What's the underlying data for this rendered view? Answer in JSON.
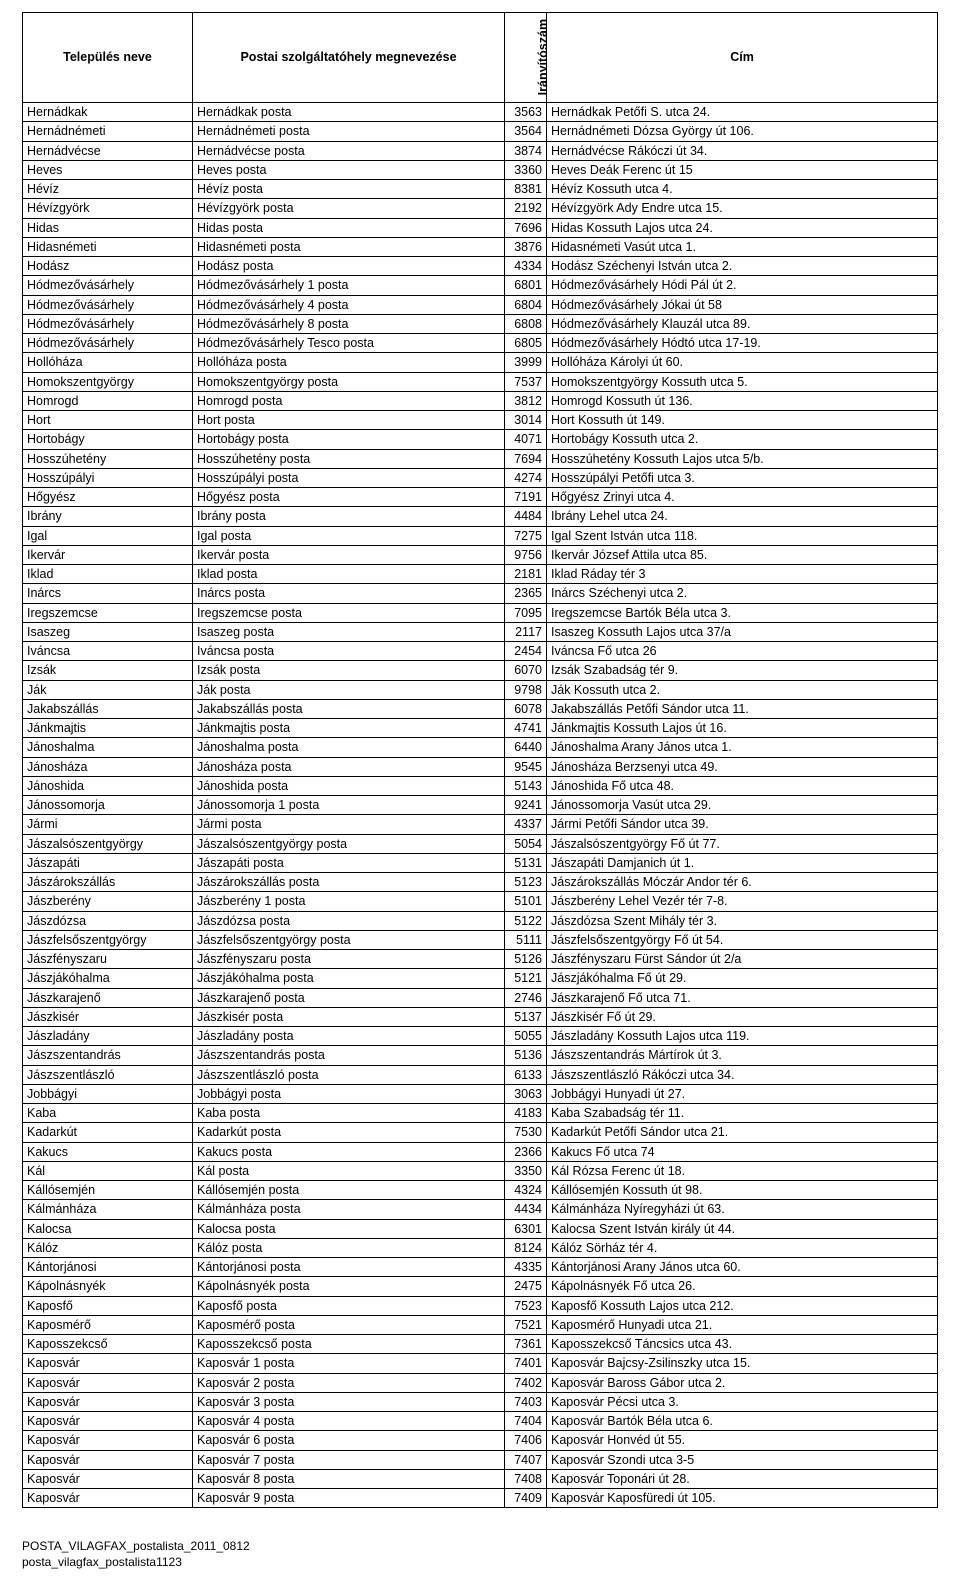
{
  "columns": [
    "Település neve",
    "Postai szolgáltatóhely megnevezése",
    "Irányítószám",
    "Cím"
  ],
  "rows": [
    [
      "Hernádkak",
      "Hernádkak posta",
      "3563",
      "Hernádkak Petőfi S. utca 24."
    ],
    [
      "Hernádnémeti",
      "Hernádnémeti posta",
      "3564",
      "Hernádnémeti Dózsa György út 106."
    ],
    [
      "Hernádvécse",
      "Hernádvécse posta",
      "3874",
      "Hernádvécse Rákóczi út 34."
    ],
    [
      "Heves",
      "Heves posta",
      "3360",
      "Heves Deák Ferenc út 15"
    ],
    [
      "Hévíz",
      "Hévíz posta",
      "8381",
      "Hévíz Kossuth utca 4."
    ],
    [
      "Hévízgyörk",
      "Hévízgyörk posta",
      "2192",
      "Hévízgyörk Ady Endre utca 15."
    ],
    [
      "Hidas",
      "Hidas posta",
      "7696",
      "Hidas Kossuth Lajos utca 24."
    ],
    [
      "Hidasnémeti",
      "Hidasnémeti posta",
      "3876",
      "Hidasnémeti Vasút utca 1."
    ],
    [
      "Hodász",
      "Hodász posta",
      "4334",
      "Hodász Széchenyi István utca 2."
    ],
    [
      "Hódmezővásárhely",
      "Hódmezővásárhely 1 posta",
      "6801",
      "Hódmezővásárhely Hódi Pál út 2."
    ],
    [
      "Hódmezővásárhely",
      "Hódmezővásárhely 4 posta",
      "6804",
      "Hódmezővásárhely Jókai út 58"
    ],
    [
      "Hódmezővásárhely",
      "Hódmezővásárhely 8 posta",
      "6808",
      "Hódmezővásárhely Klauzál utca 89."
    ],
    [
      "Hódmezővásárhely",
      "Hódmezővásárhely Tesco posta",
      "6805",
      "Hódmezővásárhely Hódtó utca 17-19."
    ],
    [
      "Hollóháza",
      "Hollóháza posta",
      "3999",
      "Hollóháza Károlyi út 60."
    ],
    [
      "Homokszentgyörgy",
      "Homokszentgyörgy posta",
      "7537",
      "Homokszentgyörgy Kossuth utca 5."
    ],
    [
      "Homrogd",
      "Homrogd posta",
      "3812",
      "Homrogd Kossuth út 136."
    ],
    [
      "Hort",
      "Hort posta",
      "3014",
      "Hort Kossuth út 149."
    ],
    [
      "Hortobágy",
      "Hortobágy posta",
      "4071",
      "Hortobágy Kossuth utca 2."
    ],
    [
      "Hosszúhetény",
      "Hosszúhetény posta",
      "7694",
      "Hosszúhetény Kossuth Lajos utca 5/b."
    ],
    [
      "Hosszúpályi",
      "Hosszúpályi posta",
      "4274",
      "Hosszúpályi Petőfi utca 3."
    ],
    [
      "Hőgyész",
      "Hőgyész posta",
      "7191",
      "Hőgyész Zrinyi utca 4."
    ],
    [
      "Ibrány",
      "Ibrány posta",
      "4484",
      "Ibrány Lehel utca 24."
    ],
    [
      "Igal",
      "Igal posta",
      "7275",
      "Igal Szent István utca 118."
    ],
    [
      "Ikervár",
      "Ikervár posta",
      "9756",
      "Ikervár József Attila utca 85."
    ],
    [
      "Iklad",
      "Iklad posta",
      "2181",
      "Iklad Ráday tér 3"
    ],
    [
      "Inárcs",
      "Inárcs posta",
      "2365",
      "Inárcs Széchenyi utca 2."
    ],
    [
      "Iregszemcse",
      "Iregszemcse posta",
      "7095",
      "Iregszemcse Bartók Béla utca 3."
    ],
    [
      "Isaszeg",
      "Isaszeg posta",
      "2117",
      "Isaszeg Kossuth Lajos utca 37/a"
    ],
    [
      "Iváncsa",
      "Iváncsa posta",
      "2454",
      "Iváncsa Fő utca 26"
    ],
    [
      "Izsák",
      "Izsák posta",
      "6070",
      "Izsák Szabadság tér 9."
    ],
    [
      "Ják",
      "Ják posta",
      "9798",
      "Ják Kossuth utca 2."
    ],
    [
      "Jakabszállás",
      "Jakabszállás posta",
      "6078",
      "Jakabszállás Petőfi Sándor utca 11."
    ],
    [
      "Jánkmajtis",
      "Jánkmajtis posta",
      "4741",
      "Jánkmajtis Kossuth Lajos út 16."
    ],
    [
      "Jánoshalma",
      "Jánoshalma posta",
      "6440",
      "Jánoshalma Arany János utca 1."
    ],
    [
      "Jánosháza",
      "Jánosháza posta",
      "9545",
      "Jánosháza Berzsenyi utca 49."
    ],
    [
      "Jánoshida",
      "Jánoshida posta",
      "5143",
      "Jánoshida Fő utca 48."
    ],
    [
      "Jánossomorja",
      "Jánossomorja 1 posta",
      "9241",
      "Jánossomorja Vasút utca 29."
    ],
    [
      "Jármi",
      "Jármi posta",
      "4337",
      "Jármi Petőfi Sándor utca 39."
    ],
    [
      "Jászalsószentgyörgy",
      "Jászalsószentgyörgy posta",
      "5054",
      "Jászalsószentgyörgy Fő út 77."
    ],
    [
      "Jászapáti",
      "Jászapáti posta",
      "5131",
      "Jászapáti Damjanich út 1."
    ],
    [
      "Jászárokszállás",
      "Jászárokszállás posta",
      "5123",
      "Jászárokszállás Móczár Andor tér 6."
    ],
    [
      "Jászberény",
      "Jászberény 1 posta",
      "5101",
      "Jászberény Lehel Vezér tér 7-8."
    ],
    [
      "Jászdózsa",
      "Jászdózsa posta",
      "5122",
      "Jászdózsa Szent Mihály tér 3."
    ],
    [
      "Jászfelsőszentgyörgy",
      "Jászfelsőszentgyörgy posta",
      "5111",
      "Jászfelsőszentgyörgy Fő út 54."
    ],
    [
      "Jászfényszaru",
      "Jászfényszaru posta",
      "5126",
      "Jászfényszaru Fürst Sándor út 2/a"
    ],
    [
      "Jászjákóhalma",
      "Jászjákóhalma posta",
      "5121",
      "Jászjákóhalma Fő út 29."
    ],
    [
      "Jászkarajenő",
      "Jászkarajenő posta",
      "2746",
      "Jászkarajenő Fő utca 71."
    ],
    [
      "Jászkisér",
      "Jászkisér posta",
      "5137",
      "Jászkisér Fő út 29."
    ],
    [
      "Jászladány",
      "Jászladány posta",
      "5055",
      "Jászladány Kossuth Lajos utca 119."
    ],
    [
      "Jászszentandrás",
      "Jászszentandrás posta",
      "5136",
      "Jászszentandrás Mártírok út 3."
    ],
    [
      "Jászszentlászló",
      "Jászszentlászló posta",
      "6133",
      "Jászszentlászló Rákóczi utca 34."
    ],
    [
      "Jobbágyi",
      "Jobbágyi posta",
      "3063",
      "Jobbágyi Hunyadi út 27."
    ],
    [
      "Kaba",
      "Kaba posta",
      "4183",
      "Kaba Szabadság tér 11."
    ],
    [
      "Kadarkút",
      "Kadarkút posta",
      "7530",
      "Kadarkút Petőfi Sándor utca 21."
    ],
    [
      "Kakucs",
      "Kakucs posta",
      "2366",
      "Kakucs Fő utca 74"
    ],
    [
      "Kál",
      "Kál posta",
      "3350",
      "Kál Rózsa Ferenc út 18."
    ],
    [
      "Kállósemjén",
      "Kállósemjén posta",
      "4324",
      "Kállósemjén Kossuth út 98."
    ],
    [
      "Kálmánháza",
      "Kálmánháza posta",
      "4434",
      "Kálmánháza Nyíregyházi út 63."
    ],
    [
      "Kalocsa",
      "Kalocsa posta",
      "6301",
      "Kalocsa Szent István király út 44."
    ],
    [
      "Kálóz",
      "Kálóz posta",
      "8124",
      "Kálóz Sörház tér 4."
    ],
    [
      "Kántorjánosi",
      "Kántorjánosi posta",
      "4335",
      "Kántorjánosi Arany János utca 60."
    ],
    [
      "Kápolnásnyék",
      "Kápolnásnyék posta",
      "2475",
      "Kápolnásnyék Fő utca 26."
    ],
    [
      "Kaposfő",
      "Kaposfő posta",
      "7523",
      "Kaposfő Kossuth Lajos utca 212."
    ],
    [
      "Kaposmérő",
      "Kaposmérő posta",
      "7521",
      "Kaposmérő Hunyadi utca 21."
    ],
    [
      "Kaposszekcső",
      "Kaposszekcső posta",
      "7361",
      "Kaposszekcső Táncsics utca 43."
    ],
    [
      "Kaposvár",
      "Kaposvár 1 posta",
      "7401",
      "Kaposvár Bajcsy-Zsilinszky utca 15."
    ],
    [
      "Kaposvár",
      "Kaposvár 2 posta",
      "7402",
      "Kaposvár Baross Gábor utca 2."
    ],
    [
      "Kaposvár",
      "Kaposvár 3 posta",
      "7403",
      "Kaposvár Pécsi utca 3."
    ],
    [
      "Kaposvár",
      "Kaposvár 4 posta",
      "7404",
      "Kaposvár Bartók Béla utca 6."
    ],
    [
      "Kaposvár",
      "Kaposvár 6 posta",
      "7406",
      "Kaposvár Honvéd út 55."
    ],
    [
      "Kaposvár",
      "Kaposvár 7 posta",
      "7407",
      "Kaposvár Szondi utca 3-5"
    ],
    [
      "Kaposvár",
      "Kaposvár 8 posta",
      "7408",
      "Kaposvár Toponári út 28."
    ],
    [
      "Kaposvár",
      "Kaposvár 9 posta",
      "7409",
      "Kaposvár Kaposfüredi út 105."
    ]
  ],
  "footer": [
    "POSTA_VILAGFAX_postalista_2011_0812",
    "posta_vilagfax_postalista1123"
  ]
}
